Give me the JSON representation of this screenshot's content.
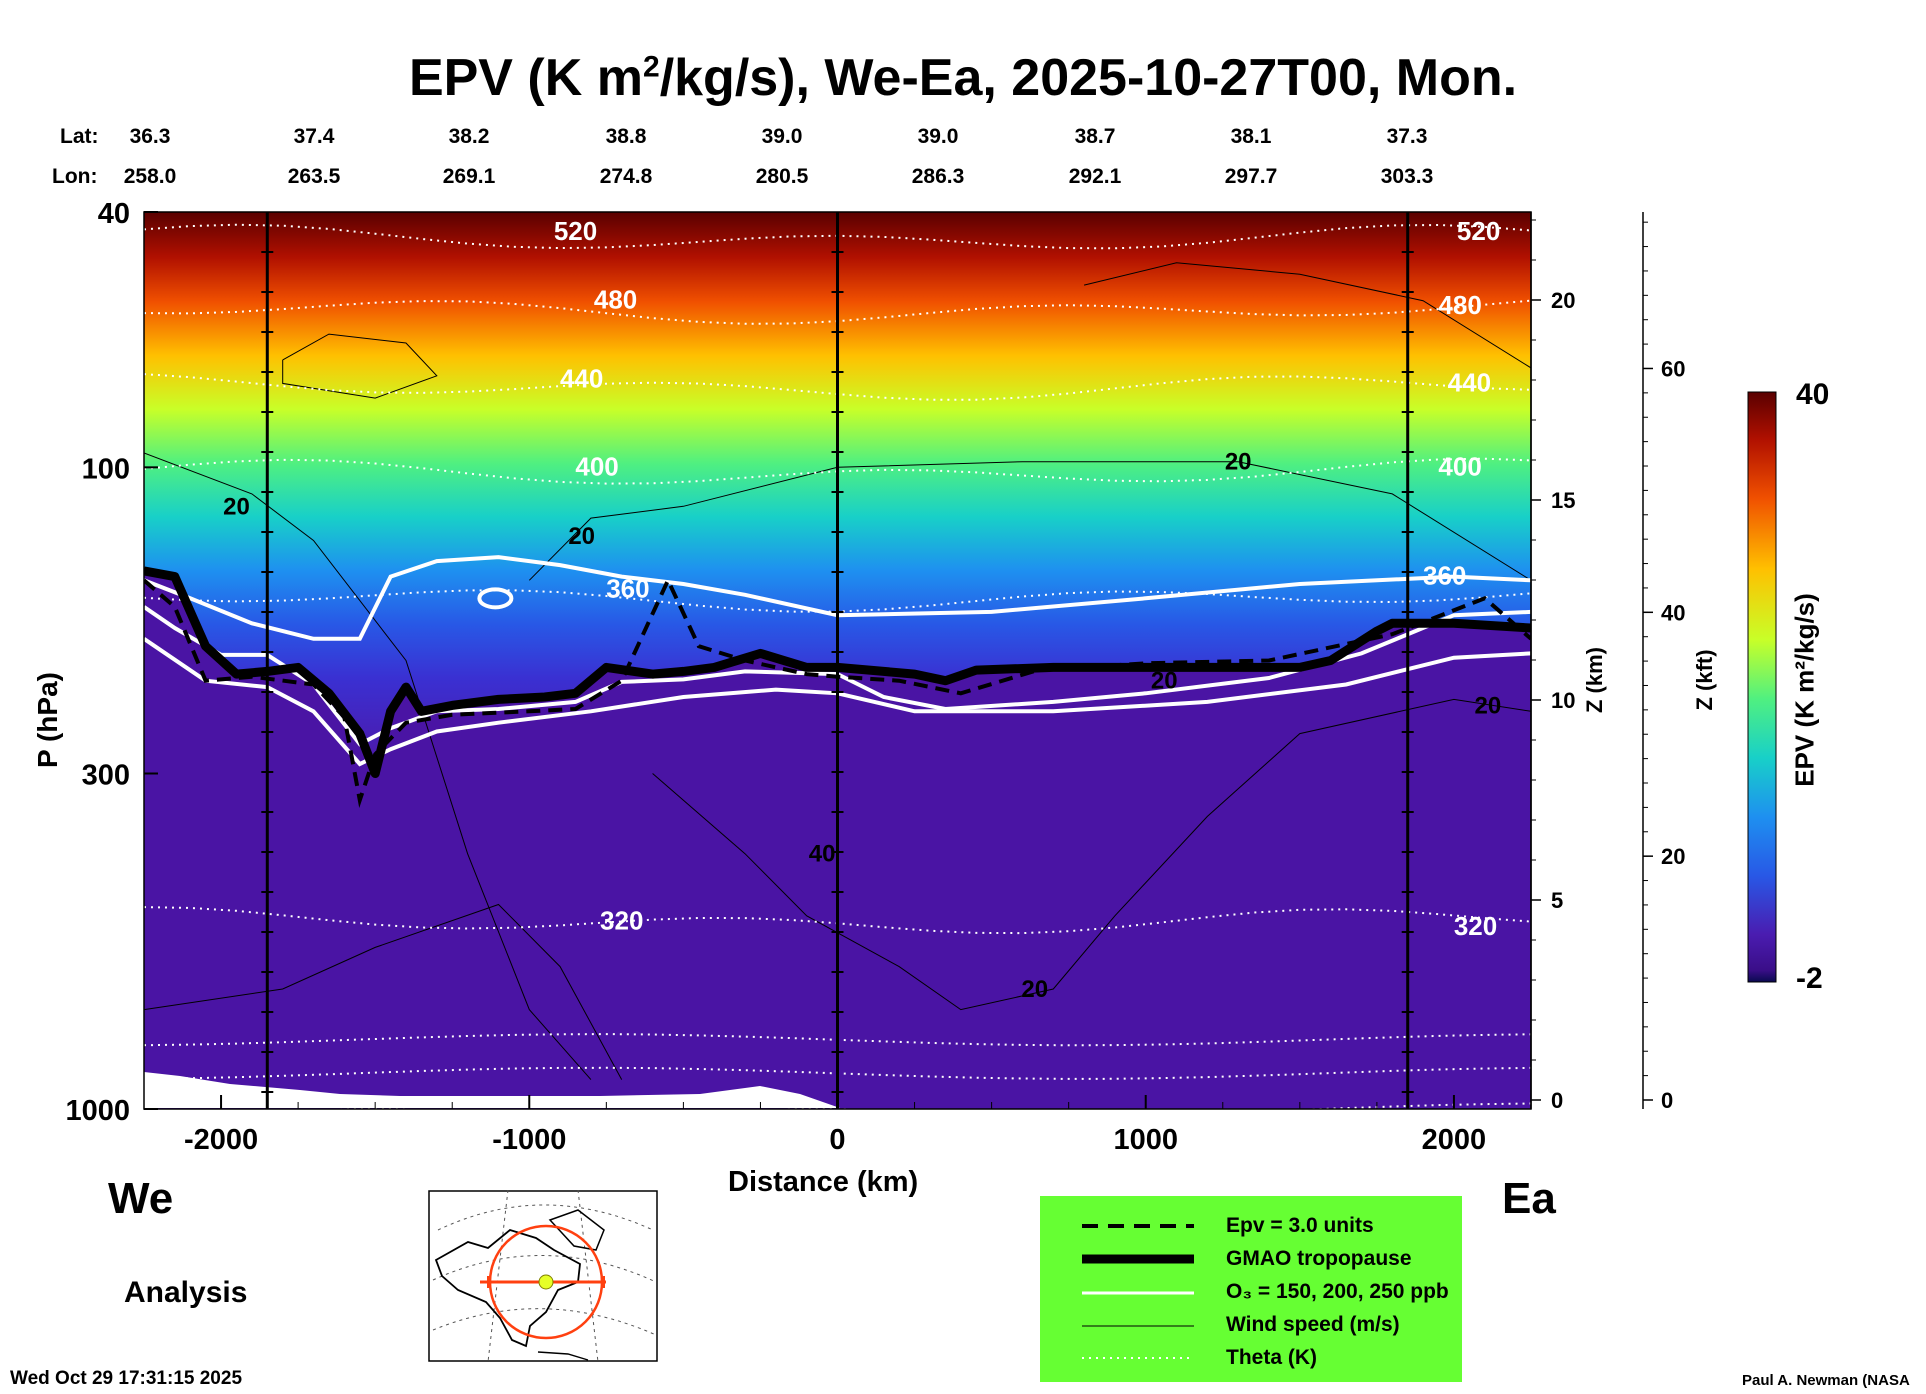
{
  "title_main": "EPV (K m",
  "title_sup": "2",
  "title_rest": "/kg/s), We-Ea, 2025-10-27T00, Mon.",
  "header": {
    "lat_label": "Lat:",
    "lon_label": "Lon:",
    "lat_values": [
      "36.3",
      "37.4",
      "38.2",
      "38.8",
      "39.0",
      "39.0",
      "38.7",
      "38.1",
      "37.3"
    ],
    "lon_values": [
      "258.0",
      "263.5",
      "269.1",
      "274.8",
      "280.5",
      "286.3",
      "292.1",
      "297.7",
      "303.3"
    ]
  },
  "footer": {
    "west": "We",
    "east": "Ea",
    "analysis": "Analysis",
    "timestamp": "Wed Oct 29 17:31:15 2025",
    "credit": "Paul A. Newman (NASA"
  },
  "legend": {
    "background": "#66ff33",
    "items": [
      {
        "label": "Epv = 3.0 units",
        "style": "dashed-black"
      },
      {
        "label": "GMAO tropopause",
        "style": "thick-black"
      },
      {
        "label": "O₃ = 150, 200, 250 ppb",
        "style": "white"
      },
      {
        "label": "Wind speed (m/s)",
        "style": "thin-black"
      },
      {
        "label": "Theta (K)",
        "style": "dotted-white"
      }
    ]
  },
  "colorbar": {
    "label": "EPV (K m²/kg/s)",
    "max_label": "40",
    "min_label": "-2",
    "colors": [
      "#5a0000",
      "#8b0000",
      "#c81400",
      "#f03c00",
      "#ff7800",
      "#ffb400",
      "#ffe600",
      "#d2ff1e",
      "#78ff50",
      "#28f096",
      "#14c8d2",
      "#1e8cf0",
      "#2850e6",
      "#3c28c8",
      "#4614a0",
      "#0a0a50"
    ]
  },
  "chart_data": {
    "type": "heatmap",
    "title": "EPV (K m2/kg/s), We-Ea, 2025-10-27T00, Mon.",
    "xlabel": "Distance (km)",
    "ylabel": "P (hPa)",
    "y2label": "Z (km)",
    "y3label": "Z (kft)",
    "xlim": [
      -2250,
      2250
    ],
    "ylim_hpa": [
      1000,
      40
    ],
    "x_ticks": [
      -2000,
      -1000,
      0,
      1000,
      2000
    ],
    "x_tick_labels": [
      "-2000",
      "-1000",
      "0",
      "1000",
      "2000"
    ],
    "p_ticks": [
      40,
      100,
      300,
      1000
    ],
    "p_tick_labels": [
      "40",
      "100",
      "300",
      "1000"
    ],
    "z_km_ticks": [
      0,
      5,
      10,
      15,
      20
    ],
    "z_km_tick_labels": [
      "0",
      "5",
      "10",
      "15",
      "20"
    ],
    "z_kft_ticks": [
      0,
      20,
      40,
      60
    ],
    "z_kft_tick_labels": [
      "0",
      "20",
      "40",
      "60"
    ],
    "vertical_lines_km": [
      -1850,
      0,
      1850
    ],
    "theta_contours": [
      {
        "theta": 520,
        "p": 44
      },
      {
        "theta": 480,
        "p": 57
      },
      {
        "theta": 440,
        "p": 75
      },
      {
        "theta": 400,
        "p": 102
      },
      {
        "theta": 360,
        "p": 160
      },
      {
        "theta": 320,
        "p": 510
      }
    ],
    "theta_label_positions": [
      {
        "text": "520",
        "x": -850,
        "p": 43
      },
      {
        "text": "480",
        "x": -720,
        "p": 55
      },
      {
        "text": "440",
        "x": -830,
        "p": 73
      },
      {
        "text": "400",
        "x": -780,
        "p": 100
      },
      {
        "text": "360",
        "x": -680,
        "p": 155
      },
      {
        "text": "320",
        "x": -700,
        "p": 510
      },
      {
        "text": "520",
        "x": 2080,
        "p": 43
      },
      {
        "text": "480",
        "x": 2020,
        "p": 56
      },
      {
        "text": "440",
        "x": 2050,
        "p": 74
      },
      {
        "text": "400",
        "x": 2020,
        "p": 100
      },
      {
        "text": "360",
        "x": 1970,
        "p": 148
      },
      {
        "text": "320",
        "x": 2070,
        "p": 520
      }
    ],
    "wind_labels": [
      {
        "text": "20",
        "x": -1950,
        "p": 115
      },
      {
        "text": "20",
        "x": -830,
        "p": 128
      },
      {
        "text": "20",
        "x": 1300,
        "p": 98
      },
      {
        "text": "40",
        "x": -50,
        "p": 400
      },
      {
        "text": "20",
        "x": 640,
        "p": 650
      },
      {
        "text": "20",
        "x": 1060,
        "p": 215
      },
      {
        "text": "20",
        "x": 2110,
        "p": 235
      }
    ],
    "tropopause_hpa": [
      {
        "x": -2250,
        "p": 145
      },
      {
        "x": -2150,
        "p": 148
      },
      {
        "x": -2050,
        "p": 190
      },
      {
        "x": -1950,
        "p": 210
      },
      {
        "x": -1850,
        "p": 208
      },
      {
        "x": -1750,
        "p": 205
      },
      {
        "x": -1650,
        "p": 225
      },
      {
        "x": -1550,
        "p": 260
      },
      {
        "x": -1500,
        "p": 300
      },
      {
        "x": -1450,
        "p": 240
      },
      {
        "x": -1400,
        "p": 220
      },
      {
        "x": -1350,
        "p": 240
      },
      {
        "x": -1250,
        "p": 235
      },
      {
        "x": -1100,
        "p": 230
      },
      {
        "x": -950,
        "p": 228
      },
      {
        "x": -850,
        "p": 225
      },
      {
        "x": -750,
        "p": 205
      },
      {
        "x": -600,
        "p": 210
      },
      {
        "x": -500,
        "p": 208
      },
      {
        "x": -400,
        "p": 205
      },
      {
        "x": -250,
        "p": 195
      },
      {
        "x": -100,
        "p": 205
      },
      {
        "x": 0,
        "p": 205
      },
      {
        "x": 150,
        "p": 208
      },
      {
        "x": 250,
        "p": 210
      },
      {
        "x": 350,
        "p": 215
      },
      {
        "x": 450,
        "p": 207
      },
      {
        "x": 700,
        "p": 205
      },
      {
        "x": 1000,
        "p": 205
      },
      {
        "x": 1500,
        "p": 205
      },
      {
        "x": 1600,
        "p": 200
      },
      {
        "x": 1750,
        "p": 180
      },
      {
        "x": 1800,
        "p": 175
      },
      {
        "x": 2000,
        "p": 175
      },
      {
        "x": 2250,
        "p": 178
      }
    ],
    "ozone_contours_hpa": [
      [
        {
          "x": -2250,
          "p": 165
        },
        {
          "x": -2150,
          "p": 178
        },
        {
          "x": -2000,
          "p": 196
        },
        {
          "x": -1850,
          "p": 196
        },
        {
          "x": -1700,
          "p": 218
        },
        {
          "x": -1550,
          "p": 270
        },
        {
          "x": -1450,
          "p": 255
        },
        {
          "x": -1300,
          "p": 240
        },
        {
          "x": -1100,
          "p": 238
        },
        {
          "x": -850,
          "p": 232
        },
        {
          "x": -700,
          "p": 216
        },
        {
          "x": -500,
          "p": 214
        },
        {
          "x": -300,
          "p": 208
        },
        {
          "x": 0,
          "p": 210
        },
        {
          "x": 150,
          "p": 228
        },
        {
          "x": 350,
          "p": 238
        },
        {
          "x": 700,
          "p": 232
        },
        {
          "x": 1000,
          "p": 225
        },
        {
          "x": 1400,
          "p": 213
        },
        {
          "x": 1700,
          "p": 195
        },
        {
          "x": 2000,
          "p": 170
        },
        {
          "x": 2250,
          "p": 168
        }
      ],
      [
        {
          "x": -2250,
          "p": 185
        },
        {
          "x": -2050,
          "p": 215
        },
        {
          "x": -1850,
          "p": 220
        },
        {
          "x": -1700,
          "p": 240
        },
        {
          "x": -1550,
          "p": 290
        },
        {
          "x": -1450,
          "p": 275
        },
        {
          "x": -1300,
          "p": 258
        },
        {
          "x": -1100,
          "p": 250
        },
        {
          "x": -800,
          "p": 240
        },
        {
          "x": -500,
          "p": 228
        },
        {
          "x": -200,
          "p": 222
        },
        {
          "x": 0,
          "p": 225
        },
        {
          "x": 250,
          "p": 240
        },
        {
          "x": 700,
          "p": 240
        },
        {
          "x": 1200,
          "p": 232
        },
        {
          "x": 1650,
          "p": 218
        },
        {
          "x": 2000,
          "p": 198
        },
        {
          "x": 2250,
          "p": 195
        }
      ],
      [
        {
          "x": -2250,
          "p": 150
        },
        {
          "x": -2100,
          "p": 160
        },
        {
          "x": -1900,
          "p": 175
        },
        {
          "x": -1700,
          "p": 185
        },
        {
          "x": -1550,
          "p": 185
        },
        {
          "x": -1450,
          "p": 148
        },
        {
          "x": -1300,
          "p": 140
        },
        {
          "x": -1100,
          "p": 138
        },
        {
          "x": -900,
          "p": 142
        },
        {
          "x": -700,
          "p": 148
        },
        {
          "x": -500,
          "p": 152
        },
        {
          "x": -300,
          "p": 158
        },
        {
          "x": 0,
          "p": 170
        },
        {
          "x": 500,
          "p": 168
        },
        {
          "x": 1000,
          "p": 160
        },
        {
          "x": 1500,
          "p": 152
        },
        {
          "x": 2000,
          "p": 148
        },
        {
          "x": 2250,
          "p": 150
        }
      ]
    ],
    "epv_3unit_contour_hpa": [
      {
        "x": -2250,
        "p": 150
      },
      {
        "x": -2150,
        "p": 165
      },
      {
        "x": -2050,
        "p": 215
      },
      {
        "x": -1900,
        "p": 212
      },
      {
        "x": -1700,
        "p": 218
      },
      {
        "x": -1600,
        "p": 245
      },
      {
        "x": -1550,
        "p": 330
      },
      {
        "x": -1500,
        "p": 280
      },
      {
        "x": -1400,
        "p": 250
      },
      {
        "x": -1250,
        "p": 243
      },
      {
        "x": -1000,
        "p": 240
      },
      {
        "x": -850,
        "p": 238
      },
      {
        "x": -700,
        "p": 215
      },
      {
        "x": -550,
        "p": 150
      },
      {
        "x": -450,
        "p": 190
      },
      {
        "x": -300,
        "p": 200
      },
      {
        "x": -100,
        "p": 210
      },
      {
        "x": 0,
        "p": 212
      },
      {
        "x": 200,
        "p": 215
      },
      {
        "x": 400,
        "p": 225
      },
      {
        "x": 650,
        "p": 207
      },
      {
        "x": 1000,
        "p": 202
      },
      {
        "x": 1400,
        "p": 200
      },
      {
        "x": 1800,
        "p": 182
      },
      {
        "x": 2100,
        "p": 160
      },
      {
        "x": 2250,
        "p": 185
      }
    ]
  },
  "inset_map": {
    "description": "Projection map with section track"
  }
}
